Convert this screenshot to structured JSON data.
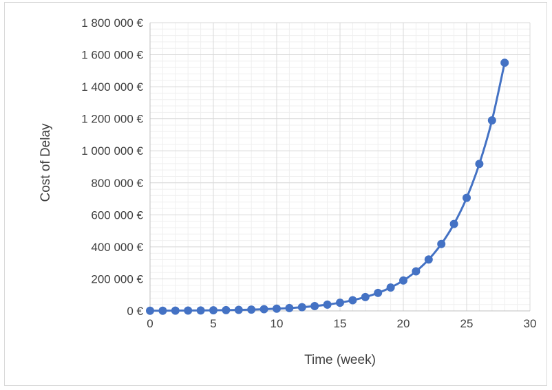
{
  "chart_data": {
    "type": "scatter",
    "title": "",
    "xlabel": "Time (week)",
    "ylabel": "Cost of Delay",
    "xlim": [
      0,
      30
    ],
    "ylim": [
      0,
      1800000
    ],
    "x_ticks": [
      {
        "value": 0,
        "label": "0"
      },
      {
        "value": 5,
        "label": "5"
      },
      {
        "value": 10,
        "label": "10"
      },
      {
        "value": 15,
        "label": "15"
      },
      {
        "value": 20,
        "label": "20"
      },
      {
        "value": 25,
        "label": "25"
      },
      {
        "value": 30,
        "label": "30"
      }
    ],
    "y_ticks": [
      {
        "value": 0,
        "label": "0 €"
      },
      {
        "value": 200000,
        "label": "200 000 €"
      },
      {
        "value": 400000,
        "label": "400 000 €"
      },
      {
        "value": 600000,
        "label": "600 000 €"
      },
      {
        "value": 800000,
        "label": "800 000 €"
      },
      {
        "value": 1000000,
        "label": "1 000 000 €"
      },
      {
        "value": 1200000,
        "label": "1 200 000 €"
      },
      {
        "value": 1400000,
        "label": "1 400 000 €"
      },
      {
        "value": 1600000,
        "label": "1 600 000 €"
      },
      {
        "value": 1800000,
        "label": "1 800 000 €"
      }
    ],
    "x_minor_step": 1,
    "y_minor_step": 40000,
    "grid": true,
    "legend": "none",
    "series_color": "#4472c4",
    "series": [
      {
        "x": [
          0,
          1,
          2,
          3,
          4,
          5,
          6,
          7,
          8,
          9,
          10,
          11,
          12,
          13,
          14,
          15,
          16,
          17,
          18,
          19,
          20,
          21,
          22,
          23,
          24,
          25,
          26,
          27,
          28
        ],
        "y": [
          1000,
          1300,
          1700,
          2200,
          2900,
          3700,
          4800,
          6300,
          8200,
          10600,
          13800,
          17900,
          23300,
          30300,
          39400,
          51200,
          66500,
          86500,
          112500,
          146200,
          190000,
          247000,
          321000,
          418000,
          543000,
          706000,
          918000,
          1190000,
          1550000
        ]
      }
    ]
  }
}
